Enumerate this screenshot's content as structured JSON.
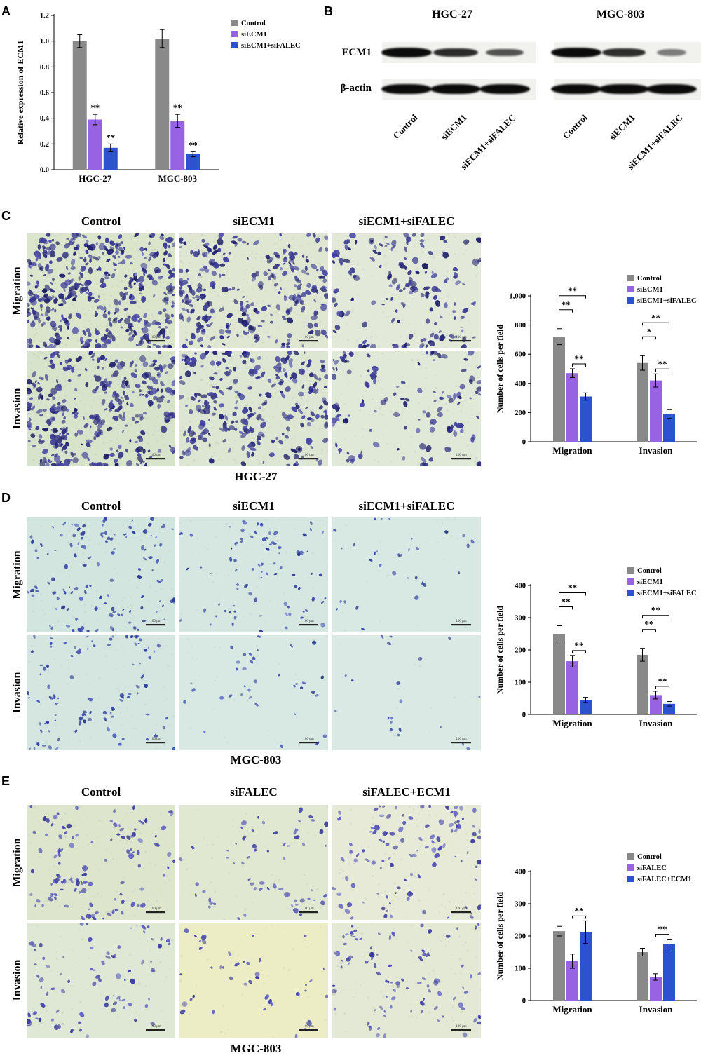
{
  "panels": {
    "A": {
      "label": "A"
    },
    "B": {
      "label": "B",
      "protein_labels": [
        "ECM1",
        "β-actin"
      ],
      "cell_lines": [
        {
          "name": "HGC-27",
          "lane_labels": [
            "Control",
            "siECM1",
            "siECM1+siFALEC"
          ],
          "rows": [
            {
              "protein": "ECM1",
              "intensities": [
                1.0,
                0.8,
                0.55
              ]
            },
            {
              "protein": "β-actin",
              "intensities": [
                1.0,
                1.0,
                1.0
              ]
            }
          ]
        },
        {
          "name": "MGC-803",
          "lane_labels": [
            "Control",
            "siECM1",
            "siECM1+siFALEC"
          ],
          "rows": [
            {
              "protein": "ECM1",
              "intensities": [
                1.0,
                0.78,
                0.3
              ]
            },
            {
              "protein": "β-actin",
              "intensities": [
                1.0,
                1.0,
                1.0
              ]
            }
          ]
        }
      ]
    },
    "C": {
      "label": "C",
      "headers": [
        "Control",
        "siECM1",
        "siECM1+siFALEC"
      ],
      "row_labels": [
        "Migration",
        "Invasion"
      ],
      "cell_line": "HGC-27",
      "scale_bar_label": "100 μm",
      "image_style": {
        "colors": [
          "#2a2a7e",
          "#3c3c94",
          "#1f1f6a",
          "#4646a0"
        ],
        "dot": [
          1.8,
          5.2
        ],
        "texture": "#b7c4ae"
      },
      "images": [
        {
          "bg": "#dbe5cc",
          "density": 420,
          "seed": 11
        },
        {
          "bg": "#dfe7d2",
          "density": 280,
          "seed": 12
        },
        {
          "bg": "#e2e9d8",
          "density": 165,
          "seed": 13
        },
        {
          "bg": "#d8e3cc",
          "density": 330,
          "seed": 14
        },
        {
          "bg": "#dce6d2",
          "density": 260,
          "seed": 15
        },
        {
          "bg": "#e0e8d8",
          "density": 120,
          "seed": 16
        }
      ]
    },
    "D": {
      "label": "D",
      "headers": [
        "Control",
        "siECM1",
        "siECM1+siFALEC"
      ],
      "row_labels": [
        "Migration",
        "Invasion"
      ],
      "cell_line": "MGC-803",
      "scale_bar_label": "100 μm",
      "image_style": {
        "colors": [
          "#3243a6",
          "#2b3a96",
          "#4252b4"
        ],
        "dot": [
          1.4,
          3.4
        ],
        "texture": "#afc9c2"
      },
      "images": [
        {
          "bg": "#d3e5df",
          "density": 130,
          "seed": 21
        },
        {
          "bg": "#d6e7e1",
          "density": 85,
          "seed": 22
        },
        {
          "bg": "#d8e8e2",
          "density": 32,
          "seed": 23
        },
        {
          "bg": "#d5e6e0",
          "density": 95,
          "seed": 24
        },
        {
          "bg": "#d8e8e3",
          "density": 36,
          "seed": 25
        },
        {
          "bg": "#dae9e4",
          "density": 20,
          "seed": 26
        }
      ]
    },
    "E": {
      "label": "E",
      "headers": [
        "Control",
        "siFALEC",
        "siFALEC+ECM1"
      ],
      "row_labels": [
        "Migration",
        "Invasion"
      ],
      "cell_line": "MGC-803",
      "scale_bar_label": "100 μm",
      "image_style": {
        "colors": [
          "#4a4ab0",
          "#3d3da0",
          "#5c5cc0"
        ],
        "dot": [
          1.6,
          4.2
        ],
        "texture": "#b6c2a6"
      },
      "images": [
        {
          "bg": "#dde6cd",
          "density": 115,
          "seed": 31
        },
        {
          "bg": "#e0e8d2",
          "density": 65,
          "seed": 32
        },
        {
          "bg": "#e6ead6",
          "density": 110,
          "seed": 33
        },
        {
          "bg": "#dfe8d4",
          "density": 82,
          "seed": 34
        },
        {
          "bg": "#ecedc4",
          "density": 42,
          "seed": 35
        },
        {
          "bg": "#e3e9d4",
          "density": 95,
          "seed": 36
        }
      ]
    }
  },
  "chart_data": [
    {
      "id": "A",
      "type": "bar",
      "title": "",
      "ylabel": "Relative expression of ECM1",
      "xlabel": "",
      "ylim": [
        0,
        1.2
      ],
      "yticks": [
        0,
        0.2,
        0.4,
        0.6,
        0.8,
        1.0,
        1.2
      ],
      "ytick_labels": [
        "0.0",
        "0.2",
        "0.4",
        "0.6",
        "0.8",
        "1.0",
        "1.2"
      ],
      "categories": [
        "HGC-27",
        "MGC-803"
      ],
      "legend_position": "top-right",
      "series": [
        {
          "name": "Control",
          "color": "#898989",
          "values": [
            1.0,
            1.02
          ],
          "errors": [
            0.05,
            0.07
          ]
        },
        {
          "name": "siECM1",
          "color": "#9763e3",
          "values": [
            0.39,
            0.38
          ],
          "errors": [
            0.04,
            0.05
          ]
        },
        {
          "name": "siECM1+siFALEC",
          "color": "#2c52cf",
          "values": [
            0.17,
            0.12
          ],
          "errors": [
            0.03,
            0.02
          ]
        }
      ],
      "sig_marks": [
        {
          "category": 0,
          "series": 1,
          "label": "**"
        },
        {
          "category": 0,
          "series": 2,
          "label": "**"
        },
        {
          "category": 1,
          "series": 1,
          "label": "**"
        },
        {
          "category": 1,
          "series": 2,
          "label": "**"
        }
      ]
    },
    {
      "id": "C",
      "type": "bar",
      "title": "",
      "ylabel": "Number of cells per field",
      "xlabel": "",
      "ylim": [
        0,
        1000
      ],
      "yticks": [
        0,
        200,
        400,
        600,
        800,
        1000
      ],
      "ytick_labels": [
        "0",
        "200",
        "400",
        "600",
        "800",
        "1,000"
      ],
      "categories": [
        "Migration",
        "Invasion"
      ],
      "legend_position": "top-right",
      "series": [
        {
          "name": "Control",
          "color": "#898989",
          "values": [
            720,
            540
          ],
          "errors": [
            55,
            50
          ]
        },
        {
          "name": "siECM1",
          "color": "#9763e3",
          "values": [
            470,
            420
          ],
          "errors": [
            30,
            45
          ]
        },
        {
          "name": "siECM1+siFALEC",
          "color": "#2c52cf",
          "values": [
            310,
            190
          ],
          "errors": [
            25,
            30
          ]
        }
      ],
      "sig_brackets": [
        {
          "category": 0,
          "from": 0,
          "to": 1,
          "label": "**",
          "level": 1
        },
        {
          "category": 0,
          "from": 0,
          "to": 2,
          "label": "**",
          "level": 2
        },
        {
          "category": 0,
          "from": 1,
          "to": 2,
          "label": "**",
          "level": 0
        },
        {
          "category": 1,
          "from": 0,
          "to": 1,
          "label": "*",
          "level": 1
        },
        {
          "category": 1,
          "from": 0,
          "to": 2,
          "label": "**",
          "level": 2
        },
        {
          "category": 1,
          "from": 1,
          "to": 2,
          "label": "**",
          "level": 0
        }
      ]
    },
    {
      "id": "D",
      "type": "bar",
      "title": "",
      "ylabel": "Number of cells per field",
      "xlabel": "",
      "ylim": [
        0,
        400
      ],
      "yticks": [
        0,
        100,
        200,
        300,
        400
      ],
      "ytick_labels": [
        "0",
        "100",
        "200",
        "300",
        "400"
      ],
      "categories": [
        "Migration",
        "Invasion"
      ],
      "legend_position": "top-right",
      "series": [
        {
          "name": "Control",
          "color": "#898989",
          "values": [
            250,
            185
          ],
          "errors": [
            25,
            20
          ]
        },
        {
          "name": "siECM1",
          "color": "#9763e3",
          "values": [
            165,
            60
          ],
          "errors": [
            18,
            12
          ]
        },
        {
          "name": "siECM1+siFALEC",
          "color": "#2c52cf",
          "values": [
            45,
            33
          ],
          "errors": [
            8,
            7
          ]
        }
      ],
      "sig_brackets": [
        {
          "category": 0,
          "from": 0,
          "to": 1,
          "label": "**",
          "level": 1
        },
        {
          "category": 0,
          "from": 0,
          "to": 2,
          "label": "**",
          "level": 2
        },
        {
          "category": 0,
          "from": 1,
          "to": 2,
          "label": "**",
          "level": 0
        },
        {
          "category": 1,
          "from": 0,
          "to": 1,
          "label": "**",
          "level": 1
        },
        {
          "category": 1,
          "from": 0,
          "to": 2,
          "label": "**",
          "level": 2
        },
        {
          "category": 1,
          "from": 1,
          "to": 2,
          "label": "**",
          "level": 0
        }
      ]
    },
    {
      "id": "E",
      "type": "bar",
      "title": "",
      "ylabel": "Number of cells per field",
      "xlabel": "",
      "ylim": [
        0,
        400
      ],
      "yticks": [
        0,
        100,
        200,
        300,
        400
      ],
      "ytick_labels": [
        "0",
        "100",
        "200",
        "300",
        "400"
      ],
      "categories": [
        "Migration",
        "Invasion"
      ],
      "legend_position": "top-right",
      "series": [
        {
          "name": "Control",
          "color": "#898989",
          "values": [
            215,
            150
          ],
          "errors": [
            15,
            12
          ]
        },
        {
          "name": "siFALEC",
          "color": "#9763e3",
          "values": [
            122,
            73
          ],
          "errors": [
            22,
            10
          ]
        },
        {
          "name": "siFALEC+ECM1",
          "color": "#2c52cf",
          "values": [
            212,
            175
          ],
          "errors": [
            35,
            15
          ]
        }
      ],
      "sig_brackets": [
        {
          "category": 0,
          "from": 1,
          "to": 2,
          "label": "**",
          "level": 0
        },
        {
          "category": 1,
          "from": 1,
          "to": 2,
          "label": "**",
          "level": 0
        }
      ]
    }
  ]
}
